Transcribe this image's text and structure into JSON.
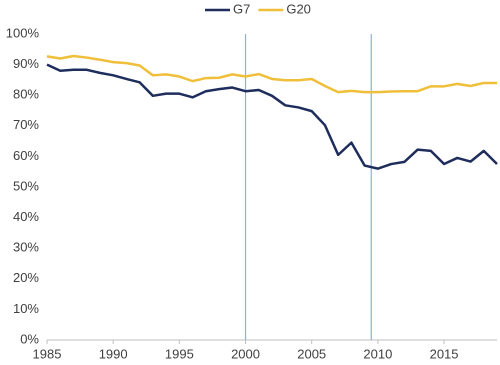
{
  "chart_data": {
    "type": "line",
    "x": [
      1985,
      1986,
      1987,
      1988,
      1989,
      1990,
      1991,
      1992,
      1993,
      1994,
      1995,
      1996,
      1997,
      1998,
      1999,
      2000,
      2001,
      2002,
      2003,
      2004,
      2005,
      2006,
      2007,
      2008,
      2009,
      2010,
      2011,
      2012,
      2013,
      2014,
      2015,
      2016,
      2017,
      2018,
      2019
    ],
    "series": [
      {
        "name": "G7",
        "color": "#1f2d5c",
        "values": [
          90,
          88,
          88.3,
          88.3,
          87.3,
          86.5,
          85.3,
          84.2,
          79.8,
          80.5,
          80.5,
          79.3,
          81.3,
          82,
          82.5,
          81.3,
          81.7,
          79.8,
          76.7,
          76,
          74.8,
          70.2,
          60.5,
          64.5,
          57,
          56,
          57.5,
          58.2,
          62.2,
          61.8,
          57.5,
          59.5,
          58.3,
          61.8,
          57.5
        ]
      },
      {
        "name": "G20",
        "color": "#f0bf3a",
        "values": [
          92.7,
          92,
          92.8,
          92.3,
          91.6,
          90.8,
          90.5,
          89.7,
          86.5,
          86.8,
          86.1,
          84.6,
          85.6,
          85.7,
          86.8,
          86.1,
          86.9,
          85.3,
          84.9,
          84.9,
          85.3,
          83,
          81,
          81.4,
          81,
          81,
          81.2,
          81.3,
          81.3,
          82.9,
          82.9,
          83.7,
          83,
          84,
          84
        ]
      }
    ],
    "vlines": [
      2000,
      2009.5
    ],
    "vline_color": "#8fb0d0",
    "xlim": [
      1985,
      2019
    ],
    "xticks": [
      1985,
      1990,
      1995,
      2000,
      2005,
      2010,
      2015
    ],
    "ylim": [
      0,
      100
    ],
    "yticks": [
      {
        "value": 0,
        "label": "0%"
      },
      {
        "value": 10,
        "label": "10%"
      },
      {
        "value": 20,
        "label": "20%"
      },
      {
        "value": 30,
        "label": "30%"
      },
      {
        "value": 40,
        "label": "40%"
      },
      {
        "value": 50,
        "label": "50%"
      },
      {
        "value": 60,
        "label": "60%"
      },
      {
        "value": 70,
        "label": "70%"
      },
      {
        "value": 80,
        "label": "80%"
      },
      {
        "value": 90,
        "label": "90%"
      },
      {
        "value": 100,
        "label": "100%"
      }
    ],
    "grid": false,
    "legend": "top"
  }
}
